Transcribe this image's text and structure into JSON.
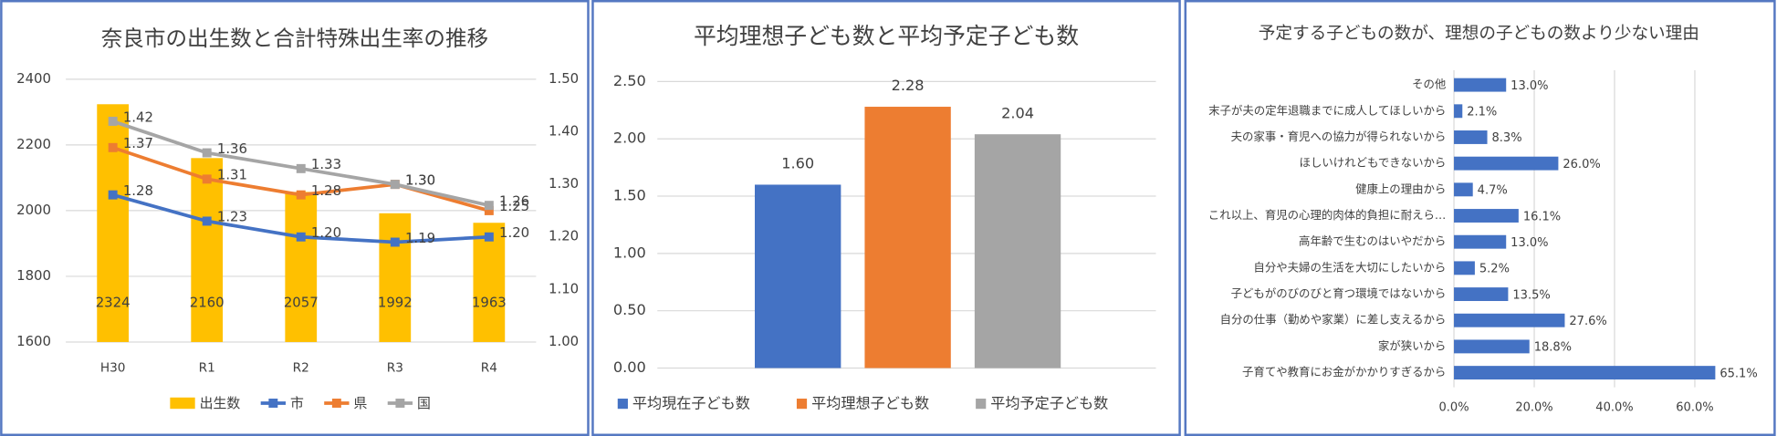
{
  "chart_data": [
    {
      "type": "combo",
      "title": "奈良市の出生数と合計特殊出生率の推移",
      "categories": [
        "H30",
        "R1",
        "R2",
        "R3",
        "R4"
      ],
      "series": [
        {
          "name": "出生数",
          "type": "bar",
          "color": "#ffc000",
          "values": [
            2324,
            2160,
            2057,
            1992,
            1963
          ]
        },
        {
          "name": "市",
          "type": "line",
          "axis": "y2",
          "color": "#4472c4",
          "values": [
            1.28,
            1.23,
            1.2,
            1.19,
            1.2
          ],
          "value_labels": [
            "1.28",
            "1.23",
            "1.20",
            "1.19",
            "1.20"
          ]
        },
        {
          "name": "県",
          "type": "line",
          "axis": "y2",
          "color": "#ed7d31",
          "values": [
            1.37,
            1.31,
            1.28,
            1.3,
            1.25
          ],
          "value_labels": [
            "1.37",
            "1.31",
            "1.28",
            "1.30",
            "1.25"
          ]
        },
        {
          "name": "国",
          "type": "line",
          "axis": "y2",
          "color": "#a5a5a5",
          "values": [
            1.42,
            1.36,
            1.33,
            1.3,
            1.26
          ],
          "value_labels": [
            "1.42",
            "1.36",
            "1.33",
            "1.30",
            "1.26"
          ]
        }
      ],
      "ylim": [
        1600,
        2400
      ],
      "yticks": [
        1600,
        1800,
        2000,
        2200,
        2400
      ],
      "y2lim": [
        1.0,
        1.5
      ],
      "y2ticks": [
        {
          "value": 1.0,
          "label": "1.00"
        },
        {
          "value": 1.1,
          "label": "1.10"
        },
        {
          "value": 1.2,
          "label": "1.20"
        },
        {
          "value": 1.3,
          "label": "1.30"
        },
        {
          "value": 1.4,
          "label": "1.40"
        },
        {
          "value": 1.5,
          "label": "1.50"
        }
      ],
      "grid": true,
      "legend": "bottom"
    },
    {
      "type": "bar",
      "title": "平均理想子ども数と平均予定子ども数",
      "categories": [
        "平均現在子ども数",
        "平均理想子ども数",
        "平均予定子ども数"
      ],
      "values": [
        1.6,
        2.28,
        2.04
      ],
      "value_labels": [
        "1.60",
        "2.28",
        "2.04"
      ],
      "colors": [
        "#4472c4",
        "#ed7d31",
        "#a5a5a5"
      ],
      "ylim": [
        0,
        2.5
      ],
      "yticks": [
        {
          "value": 0,
          "label": "0.00"
        },
        {
          "value": 0.5,
          "label": "0.50"
        },
        {
          "value": 1.0,
          "label": "1.00"
        },
        {
          "value": 1.5,
          "label": "1.50"
        },
        {
          "value": 2.0,
          "label": "2.00"
        },
        {
          "value": 2.5,
          "label": "2.50"
        }
      ],
      "grid": true,
      "legend": "bottom"
    },
    {
      "type": "barh",
      "title": "予定する子どもの数が、理想の子どもの数より少ない理由",
      "categories": [
        "その他",
        "末子が夫の定年退職までに成人してほしいから",
        "夫の家事・育児への協力が得られないから",
        "ほしいけれどもできないから",
        "健康上の理由から",
        "これ以上、育児の心理的肉体的負担に耐えら…",
        "高年齢で生むのはいやだから",
        "自分や夫婦の生活を大切にしたいから",
        "子どもがのびのびと育つ環境ではないから",
        "自分の仕事（勤めや家業）に差し支えるから",
        "家が狭いから",
        "子育てや教育にお金がかかりすぎるから"
      ],
      "values": [
        13.0,
        2.1,
        8.3,
        26.0,
        4.7,
        16.1,
        13.0,
        5.2,
        13.5,
        27.6,
        18.8,
        65.1
      ],
      "value_labels": [
        "13.0%",
        "2.1%",
        "8.3%",
        "26.0%",
        "4.7%",
        "16.1%",
        "13.0%",
        "5.2%",
        "13.5%",
        "27.6%",
        "18.8%",
        "65.1%"
      ],
      "color": "#4472c4",
      "xlim": [
        0,
        70
      ],
      "xticks": [
        {
          "value": 0,
          "label": "0.0%"
        },
        {
          "value": 20,
          "label": "20.0%"
        },
        {
          "value": 40,
          "label": "40.0%"
        },
        {
          "value": 60,
          "label": "60.0%"
        }
      ],
      "grid": true
    }
  ]
}
